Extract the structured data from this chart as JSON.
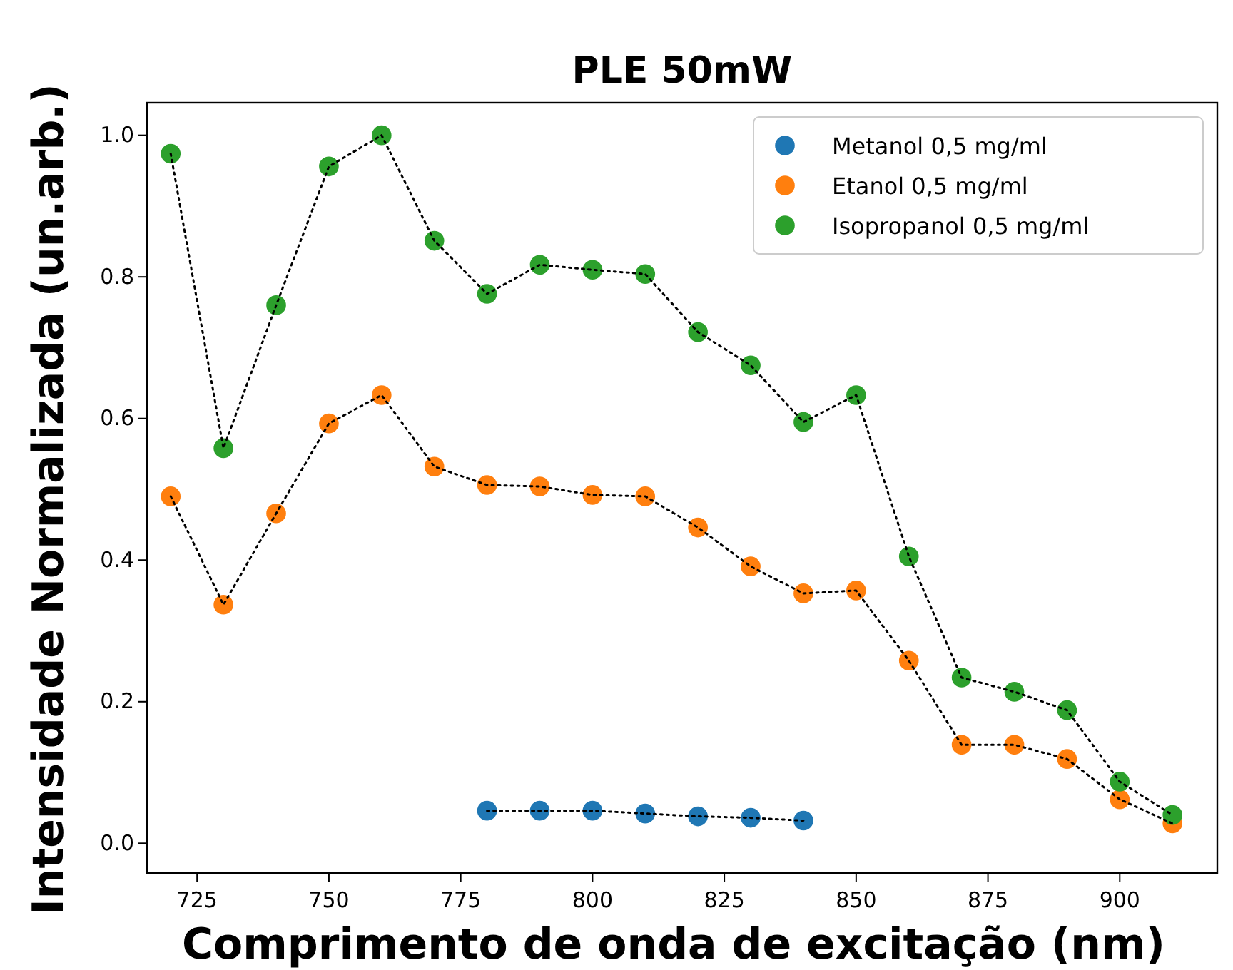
{
  "chart_data": {
    "type": "scatter",
    "title": "PLE 50mW",
    "xlabel": "Comprimento de onda de excitação (nm)",
    "ylabel": "Intensidade Normalizada (un.arb.)",
    "xlim": [
      715.5,
      918.5
    ],
    "xticks": [
      725,
      750,
      775,
      800,
      825,
      850,
      875,
      900
    ],
    "ylim": [
      -0.042,
      1.046
    ],
    "yticks": [
      {
        "value": 0,
        "label": "0.0"
      },
      {
        "value": 0.2,
        "label": "0.2"
      },
      {
        "value": 0.4,
        "label": "0.4"
      },
      {
        "value": 0.6,
        "label": "0.6"
      },
      {
        "value": 0.8,
        "label": "0.8"
      },
      {
        "value": 1,
        "label": "1.0"
      }
    ],
    "grid": false,
    "legend": "top right",
    "marker": "circle",
    "series": [
      {
        "type": "line",
        "color": "#000000",
        "line_style": "dotted",
        "marker": "none",
        "x": [
          780,
          790,
          800,
          810,
          820,
          830,
          840
        ],
        "values": [
          0.046,
          0.046,
          0.046,
          0.042,
          0.038,
          0.036,
          0.032
        ]
      },
      {
        "type": "line",
        "color": "#000000",
        "line_style": "dotted",
        "marker": "none",
        "x": [
          720,
          730,
          740,
          750,
          760,
          770,
          780,
          790,
          800,
          810,
          820,
          830,
          840,
          850,
          860,
          870,
          880,
          890,
          900,
          910
        ],
        "values": [
          0.49,
          0.337,
          0.466,
          0.593,
          0.633,
          0.532,
          0.506,
          0.504,
          0.492,
          0.49,
          0.446,
          0.391,
          0.353,
          0.357,
          0.258,
          0.139,
          0.139,
          0.119,
          0.062,
          0.028
        ]
      },
      {
        "type": "line",
        "color": "#000000",
        "line_style": "dotted",
        "marker": "none",
        "x": [
          720,
          730,
          740,
          750,
          760,
          770,
          780,
          790,
          800,
          810,
          820,
          830,
          840,
          850,
          860,
          870,
          880,
          890,
          900,
          910
        ],
        "values": [
          0.974,
          0.558,
          0.76,
          0.956,
          1.0,
          0.851,
          0.776,
          0.817,
          0.81,
          0.804,
          0.722,
          0.675,
          0.595,
          0.633,
          0.405,
          0.234,
          0.214,
          0.188,
          0.087,
          0.04
        ]
      },
      {
        "name": "Metanol 0,5 mg/ml",
        "color": "#1f77b4",
        "x": [
          780,
          790,
          800,
          810,
          820,
          830,
          840
        ],
        "values": [
          0.046,
          0.046,
          0.046,
          0.042,
          0.038,
          0.036,
          0.032
        ]
      },
      {
        "name": "Etanol 0,5 mg/ml",
        "color": "#ff7f0e",
        "x": [
          720,
          730,
          740,
          750,
          760,
          770,
          780,
          790,
          800,
          810,
          820,
          830,
          840,
          850,
          860,
          870,
          880,
          890,
          900,
          910
        ],
        "values": [
          0.49,
          0.337,
          0.466,
          0.593,
          0.633,
          0.532,
          0.506,
          0.504,
          0.492,
          0.49,
          0.446,
          0.391,
          0.353,
          0.357,
          0.258,
          0.139,
          0.139,
          0.119,
          0.062,
          0.028
        ]
      },
      {
        "name": "Isopropanol 0,5 mg/ml",
        "color": "#2ca02c",
        "x": [
          720,
          730,
          740,
          750,
          760,
          770,
          780,
          790,
          800,
          810,
          820,
          830,
          840,
          850,
          860,
          870,
          880,
          890,
          900,
          910
        ],
        "values": [
          0.974,
          0.558,
          0.76,
          0.956,
          1.0,
          0.851,
          0.776,
          0.817,
          0.81,
          0.804,
          0.722,
          0.675,
          0.595,
          0.633,
          0.405,
          0.234,
          0.214,
          0.188,
          0.087,
          0.04
        ]
      }
    ]
  }
}
